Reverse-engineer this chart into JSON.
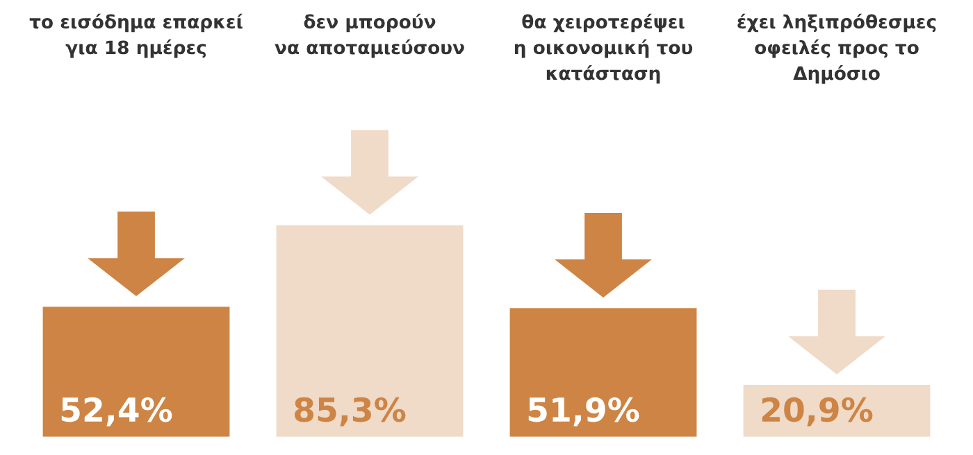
{
  "chart_data": {
    "type": "bar",
    "categories": [
      "το εισόδημα επαρκεί\nγια 18 ημέρες",
      "δεν μπορούν\nνα αποταμιεύσουν",
      "θα χειροτερέψει\nη οικονομική του\nκατάσταση",
      "έχει ληξιπρόθεσμες\nοφειλές προς το\nΔημόσιο"
    ],
    "values": [
      52.4,
      85.3,
      51.9,
      20.9
    ],
    "colors": [
      "#cd8444",
      "#f0dac8",
      "#cd8444",
      "#f0dac8"
    ],
    "value_labels": [
      "52,4%",
      "85,3%",
      "51,9%",
      "20,9%"
    ]
  }
}
